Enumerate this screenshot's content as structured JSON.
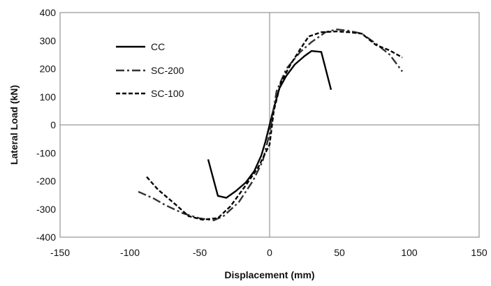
{
  "chart_data": {
    "type": "line",
    "title": "",
    "xlabel": "Displacement (mm)",
    "ylabel": "Lateral Load (kN)",
    "xlim": [
      -150,
      150
    ],
    "ylim": [
      -400,
      400
    ],
    "xticks": [
      -150,
      -100,
      -50,
      0,
      50,
      100,
      150
    ],
    "yticks": [
      400,
      300,
      200,
      100,
      0,
      -100,
      -200,
      -300,
      -400
    ],
    "grid": false,
    "legend_position": "upper-left",
    "series": [
      {
        "name": "CC",
        "line_style": "solid",
        "color": "#000000",
        "x": [
          -44,
          -37,
          -31,
          -24,
          -17,
          -11,
          -6,
          -3,
          0,
          3,
          7,
          12,
          18,
          25,
          30,
          37,
          44
        ],
        "y": [
          -123,
          -253,
          -260,
          -235,
          -205,
          -165,
          -110,
          -60,
          0,
          60,
          130,
          175,
          215,
          245,
          263,
          260,
          125
        ]
      },
      {
        "name": "SC-200",
        "line_style": "dash-dot",
        "color": "#333333",
        "x": [
          -94,
          -83,
          -75,
          -62,
          -50,
          -40,
          -33,
          -22,
          -12,
          -5,
          0,
          5,
          12,
          22,
          30,
          40,
          48,
          57,
          66,
          76,
          86,
          95
        ],
        "y": [
          -238,
          -262,
          -285,
          -315,
          -333,
          -340,
          -325,
          -275,
          -200,
          -130,
          -30,
          120,
          200,
          260,
          295,
          330,
          340,
          335,
          325,
          290,
          250,
          190
        ]
      },
      {
        "name": "SC-100",
        "line_style": "dashed",
        "color": "#000000",
        "x": [
          -88,
          -80,
          -67,
          -58,
          -48,
          -37,
          -28,
          -17,
          -8,
          -3,
          0,
          3,
          8,
          15,
          22,
          28,
          37,
          48,
          57,
          66,
          76,
          86,
          95
        ],
        "y": [
          -185,
          -230,
          -285,
          -325,
          -338,
          -332,
          -290,
          -215,
          -150,
          -100,
          -70,
          50,
          150,
          215,
          270,
          315,
          330,
          333,
          330,
          325,
          285,
          265,
          240
        ]
      }
    ]
  }
}
